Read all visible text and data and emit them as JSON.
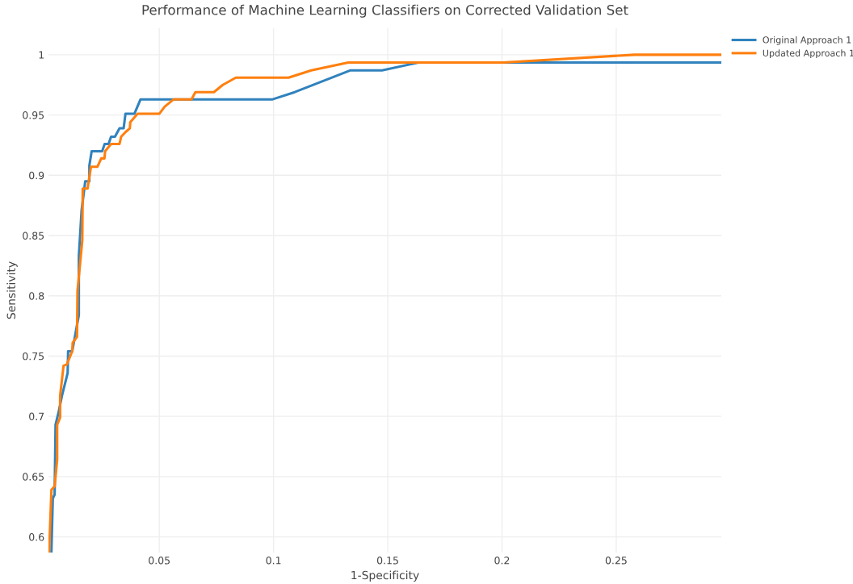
{
  "chart_data": {
    "type": "line",
    "title": "Performance of Machine Learning Classifiers on Corrected Validation Set",
    "xlabel": "1-Specificity",
    "ylabel": "Sensitivity",
    "xlim": [
      0.0015,
      0.296
    ],
    "ylim": [
      0.587,
      1.022
    ],
    "xticks": [
      0.05,
      0.1,
      0.15,
      0.2,
      0.25
    ],
    "yticks": [
      0.6,
      0.65,
      0.7,
      0.75,
      0.8,
      0.85,
      0.9,
      0.95,
      {
        "value": 1,
        "label": "1"
      }
    ],
    "grid": true,
    "legend": "top right",
    "line_style": "solid",
    "marker": "none",
    "series": [
      {
        "name": "Original Approach 1",
        "color": "#3182bd",
        "x": [
          0.0028,
          0.0034,
          0.0042,
          0.0046,
          0.006,
          0.0074,
          0.0099,
          0.0101,
          0.0119,
          0.0148,
          0.0148,
          0.016,
          0.0176,
          0.0194,
          0.0194,
          0.0204,
          0.025,
          0.0261,
          0.0278,
          0.0289,
          0.0306,
          0.0326,
          0.0344,
          0.0352,
          0.0391,
          0.0418,
          0.0996,
          0.1093,
          0.1335,
          0.1475,
          0.1634,
          0.2958
        ],
        "values": [
          0.588,
          0.632,
          0.635,
          0.693,
          0.704,
          0.717,
          0.736,
          0.754,
          0.754,
          0.784,
          0.833,
          0.871,
          0.895,
          0.895,
          0.908,
          0.92,
          0.92,
          0.926,
          0.926,
          0.932,
          0.932,
          0.939,
          0.939,
          0.951,
          0.951,
          0.963,
          0.963,
          0.969,
          0.987,
          0.987,
          0.9935,
          0.9935
        ]
      },
      {
        "name": "Updated Approach 1",
        "color": "#ff7f0e",
        "x": [
          0.0018,
          0.0028,
          0.0042,
          0.0053,
          0.0053,
          0.0066,
          0.0066,
          0.0081,
          0.0095,
          0.0119,
          0.0121,
          0.014,
          0.0142,
          0.0163,
          0.0165,
          0.0186,
          0.0201,
          0.0229,
          0.0246,
          0.026,
          0.0263,
          0.0289,
          0.0326,
          0.0333,
          0.0353,
          0.0371,
          0.0373,
          0.0405,
          0.05,
          0.0524,
          0.0563,
          0.0641,
          0.0658,
          0.0739,
          0.0778,
          0.0835,
          0.1066,
          0.1165,
          0.1327,
          0.2006,
          0.2579,
          0.2958
        ],
        "values": [
          0.588,
          0.639,
          0.642,
          0.664,
          0.693,
          0.699,
          0.717,
          0.742,
          0.743,
          0.754,
          0.761,
          0.766,
          0.804,
          0.846,
          0.889,
          0.889,
          0.907,
          0.907,
          0.914,
          0.914,
          0.92,
          0.926,
          0.926,
          0.932,
          0.936,
          0.939,
          0.944,
          0.951,
          0.951,
          0.957,
          0.963,
          0.963,
          0.969,
          0.969,
          0.975,
          0.981,
          0.981,
          0.987,
          0.9935,
          0.9935,
          1.0,
          1.0
        ]
      }
    ]
  }
}
